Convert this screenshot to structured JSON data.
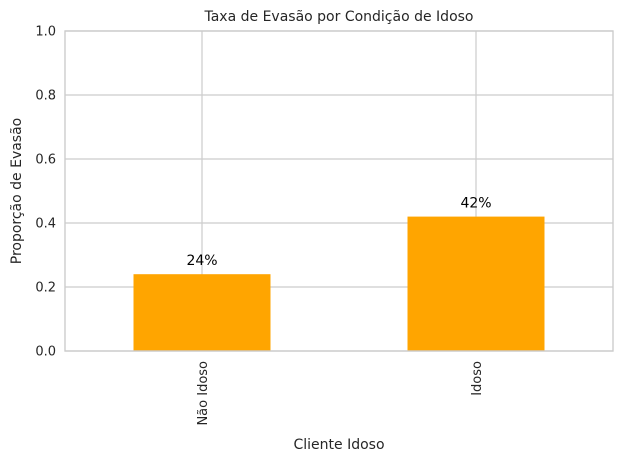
{
  "chart_data": {
    "type": "bar",
    "title": "Taxa de Evasão por Condição de Idoso",
    "xlabel": "Cliente Idoso",
    "ylabel": "Proporção de Evasão",
    "categories": [
      "Não Idoso",
      "Idoso"
    ],
    "values": [
      0.24,
      0.42
    ],
    "data_labels": [
      "24%",
      "42%"
    ],
    "ylim": [
      0,
      1
    ],
    "yticks": [
      0.0,
      0.2,
      0.4,
      0.6,
      0.8,
      1.0
    ],
    "ytick_labels": [
      "0.0",
      "0.2",
      "0.4",
      "0.6",
      "0.8",
      "1.0"
    ],
    "grid": true,
    "bar_color": "#ffa500"
  }
}
